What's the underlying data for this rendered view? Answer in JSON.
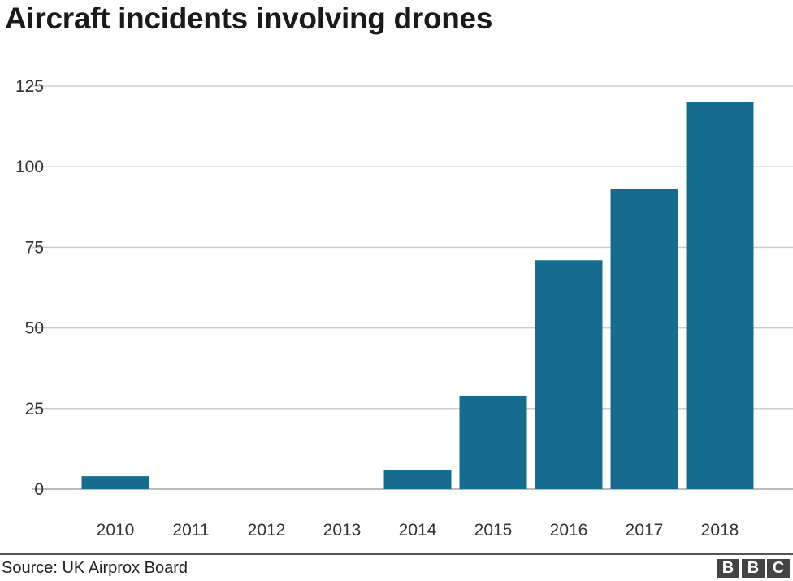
{
  "chart_data": {
    "type": "bar",
    "title": "Aircraft incidents involving drones",
    "categories": [
      "2010",
      "2011",
      "2012",
      "2013",
      "2014",
      "2015",
      "2016",
      "2017",
      "2018"
    ],
    "values": [
      4,
      0,
      0,
      0,
      6,
      29,
      71,
      93,
      120
    ],
    "xlabel": "",
    "ylabel": "",
    "ylim": [
      0,
      125
    ],
    "yticks": [
      0,
      25,
      50,
      75,
      100,
      125
    ],
    "grid": true,
    "bar_color": "#166c8e"
  },
  "footer": {
    "source": "Source: UK Airprox Board",
    "logo": [
      "B",
      "B",
      "C"
    ]
  }
}
